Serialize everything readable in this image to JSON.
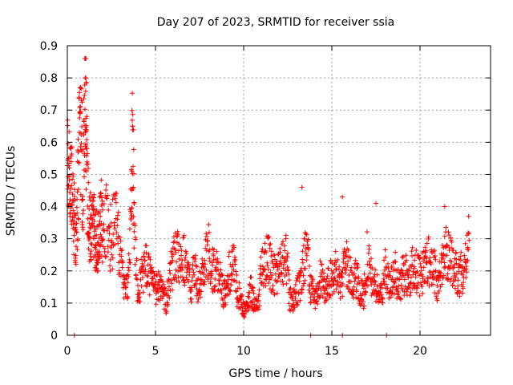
{
  "chart_data": {
    "type": "scatter",
    "title": "Day 207 of 2023, SRMTID for receiver ssia",
    "xlabel": "GPS time / hours",
    "ylabel": "SRMTID / TECUs",
    "xlim": [
      0,
      24
    ],
    "ylim": [
      0,
      0.9
    ],
    "xticks": [
      "0",
      "5",
      "10",
      "15",
      "20"
    ],
    "xtick_values": [
      0,
      5,
      10,
      15,
      20
    ],
    "yticks": [
      "0",
      "0.1",
      "0.2",
      "0.3",
      "0.4",
      "0.5",
      "0.6",
      "0.7",
      "0.8",
      "0.9"
    ],
    "ytick_values": [
      0,
      0.1,
      0.2,
      0.3,
      0.4,
      0.5,
      0.6,
      0.7,
      0.8,
      0.9
    ],
    "grid": true,
    "marker": "plus",
    "color": "#ff0000",
    "series": [
      {
        "name": "SRMTID",
        "x": [
          0.0,
          0.1,
          0.2,
          0.3,
          0.4,
          0.5,
          0.6,
          0.7,
          0.8,
          0.9,
          1.0,
          1.05,
          1.1,
          1.2,
          1.3,
          1.4,
          1.5,
          1.6,
          1.7,
          1.8,
          1.9,
          2.0,
          2.2,
          2.4,
          2.6,
          2.8,
          3.0,
          3.2,
          3.4,
          3.6,
          3.7,
          3.8,
          4.0,
          4.2,
          4.4,
          4.6,
          4.8,
          5.0,
          5.2,
          5.4,
          5.6,
          5.8,
          6.0,
          6.2,
          6.4,
          6.6,
          6.8,
          7.0,
          7.2,
          7.4,
          7.6,
          7.8,
          8.0,
          8.2,
          8.4,
          8.6,
          8.8,
          9.0,
          9.2,
          9.4,
          9.6,
          9.8,
          10.0,
          10.2,
          10.4,
          10.6,
          10.8,
          11.0,
          11.2,
          11.4,
          11.6,
          11.8,
          12.0,
          12.2,
          12.4,
          12.6,
          12.8,
          13.0,
          13.2,
          13.4,
          13.6,
          13.8,
          14.0,
          14.2,
          14.4,
          14.6,
          14.8,
          15.0,
          15.2,
          15.4,
          15.6,
          15.8,
          16.0,
          16.2,
          16.4,
          16.6,
          16.8,
          17.0,
          17.2,
          17.4,
          17.6,
          17.8,
          18.0,
          18.2,
          18.4,
          18.6,
          18.8,
          19.0,
          19.2,
          19.4,
          19.6,
          19.8,
          20.0,
          20.2,
          20.4,
          20.6,
          20.8,
          21.0,
          21.2,
          21.4,
          21.6,
          21.8,
          22.0,
          22.2,
          22.4,
          22.6,
          22.8
        ],
        "values": [
          0.58,
          0.55,
          0.48,
          0.44,
          0.35,
          0.28,
          0.45,
          0.62,
          0.58,
          0.47,
          0.78,
          0.76,
          0.52,
          0.38,
          0.33,
          0.31,
          0.36,
          0.3,
          0.28,
          0.34,
          0.38,
          0.33,
          0.35,
          0.3,
          0.32,
          0.35,
          0.25,
          0.17,
          0.14,
          0.36,
          0.62,
          0.33,
          0.12,
          0.18,
          0.22,
          0.19,
          0.16,
          0.14,
          0.16,
          0.13,
          0.1,
          0.18,
          0.22,
          0.26,
          0.2,
          0.24,
          0.18,
          0.15,
          0.2,
          0.16,
          0.17,
          0.22,
          0.26,
          0.21,
          0.2,
          0.19,
          0.14,
          0.12,
          0.2,
          0.24,
          0.14,
          0.12,
          0.08,
          0.1,
          0.14,
          0.1,
          0.08,
          0.2,
          0.22,
          0.24,
          0.2,
          0.18,
          0.2,
          0.22,
          0.26,
          0.12,
          0.1,
          0.14,
          0.16,
          0.22,
          0.28,
          0.14,
          0.12,
          0.15,
          0.18,
          0.14,
          0.16,
          0.18,
          0.2,
          0.16,
          0.18,
          0.22,
          0.2,
          0.16,
          0.18,
          0.14,
          0.12,
          0.24,
          0.18,
          0.16,
          0.14,
          0.12,
          0.2,
          0.18,
          0.16,
          0.2,
          0.14,
          0.18,
          0.2,
          0.16,
          0.22,
          0.2,
          0.18,
          0.2,
          0.24,
          0.22,
          0.2,
          0.14,
          0.22,
          0.28,
          0.26,
          0.22,
          0.2,
          0.18,
          0.2,
          0.26,
          0.3
        ]
      }
    ],
    "outliers": [
      {
        "x": 1.05,
        "y": 0.8
      },
      {
        "x": 3.7,
        "y": 0.65
      },
      {
        "x": 13.3,
        "y": 0.46
      },
      {
        "x": 15.6,
        "y": 0.43
      },
      {
        "x": 17.5,
        "y": 0.41
      },
      {
        "x": 21.4,
        "y": 0.4
      },
      {
        "x": 0.4,
        "y": 0.0
      },
      {
        "x": 13.8,
        "y": 0.0
      },
      {
        "x": 15.6,
        "y": 0.0
      },
      {
        "x": 18.1,
        "y": 0.0
      }
    ]
  }
}
